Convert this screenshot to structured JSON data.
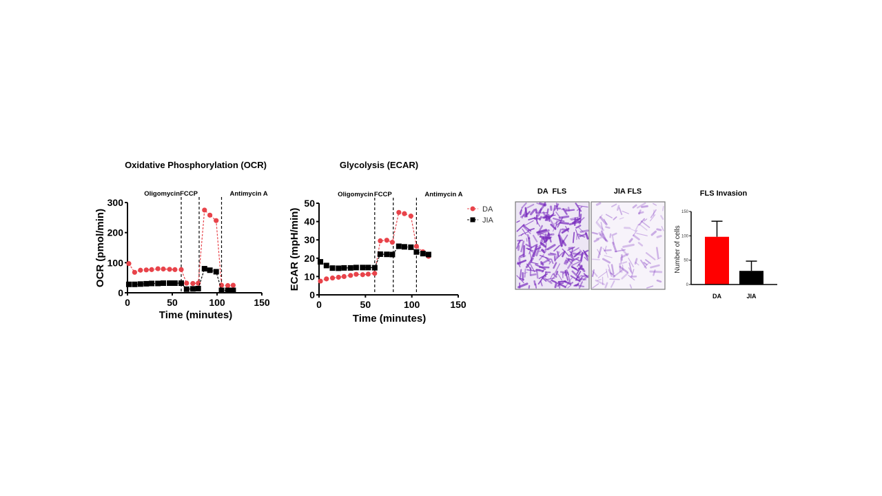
{
  "chart_data": [
    {
      "type": "line",
      "title": "Oxidative Phosphorylation (OCR)",
      "xlabel": "Time (minutes)",
      "ylabel": "OCR (pmol/min)",
      "xlim": [
        0,
        150
      ],
      "ylim": [
        0,
        300
      ],
      "xticks": [
        "0",
        "50",
        "100",
        "150"
      ],
      "yticks": [
        "0",
        "100",
        "200",
        "300"
      ],
      "injections": [
        {
          "label": "Oligomycin",
          "x": 60
        },
        {
          "label": "FCCP",
          "x": 80
        },
        {
          "label": "Antimycin A",
          "x": 105
        }
      ],
      "x": [
        1.5,
        8,
        14.5,
        21,
        27,
        34,
        40,
        47,
        53,
        60,
        66,
        73,
        79,
        86,
        92,
        99,
        105,
        112,
        118
      ],
      "series": [
        {
          "name": "DA",
          "marker": "circle",
          "color": "#e8434a",
          "values": [
            97,
            68,
            75,
            76,
            77,
            80,
            79,
            78,
            77,
            77,
            32,
            31,
            32,
            275,
            258,
            240,
            25,
            24,
            25
          ]
        },
        {
          "name": "JIA",
          "marker": "square",
          "color": "#000000",
          "values": [
            28,
            28,
            29,
            30,
            31,
            31,
            32,
            32,
            32,
            32,
            12,
            13,
            14,
            80,
            75,
            70,
            8,
            8,
            8
          ]
        }
      ]
    },
    {
      "type": "line",
      "title": "Glycolysis (ECAR)",
      "xlabel": "Time (minutes)",
      "ylabel": "ECAR (mpH/min)",
      "xlim": [
        0,
        150
      ],
      "ylim": [
        0,
        50
      ],
      "xticks": [
        "0",
        "50",
        "100",
        "150"
      ],
      "yticks": [
        "0",
        "10",
        "20",
        "30",
        "40",
        "50"
      ],
      "injections": [
        {
          "label": "Oligomycin",
          "x": 60
        },
        {
          "label": "FCCP",
          "x": 80
        },
        {
          "label": "Antimycin A",
          "x": 105
        }
      ],
      "legend": {
        "placement": "right",
        "entries": [
          "DA",
          "JIA"
        ]
      },
      "x": [
        1.5,
        8,
        14.5,
        21,
        27,
        34,
        40,
        47,
        53,
        60,
        66,
        73,
        79,
        86,
        92,
        99,
        105,
        112,
        118
      ],
      "series": [
        {
          "name": "DA",
          "marker": "circle",
          "color": "#e8434a",
          "values": [
            7.5,
            8.7,
            9.2,
            9.6,
            10,
            10.6,
            11.2,
            11,
            11.3,
            11.7,
            29.5,
            29.8,
            28.7,
            45,
            44.3,
            43,
            26.5,
            23.5,
            21
          ]
        },
        {
          "name": "JIA",
          "marker": "square",
          "color": "#000000",
          "values": [
            18,
            16,
            14.6,
            14.5,
            14.7,
            14.7,
            14.9,
            14.9,
            14.9,
            14.8,
            22.2,
            22.1,
            22,
            26.5,
            26.2,
            26,
            23.4,
            22.5,
            22
          ]
        }
      ]
    },
    {
      "type": "bar",
      "title": "FLS Invasion",
      "ylabel": "Number of cells",
      "ylim": [
        0,
        150
      ],
      "yticks": [
        "0",
        "50",
        "100",
        "150"
      ],
      "categories": [
        "DA",
        "JIA"
      ],
      "values": [
        98,
        28
      ],
      "errors": [
        32,
        20
      ],
      "colors": [
        "#ff0000",
        "#000000"
      ]
    }
  ],
  "micrographs": {
    "da_label": "DA  FLS",
    "jia_label": "JIA FLS",
    "stain_color": "#7b2fbf"
  }
}
